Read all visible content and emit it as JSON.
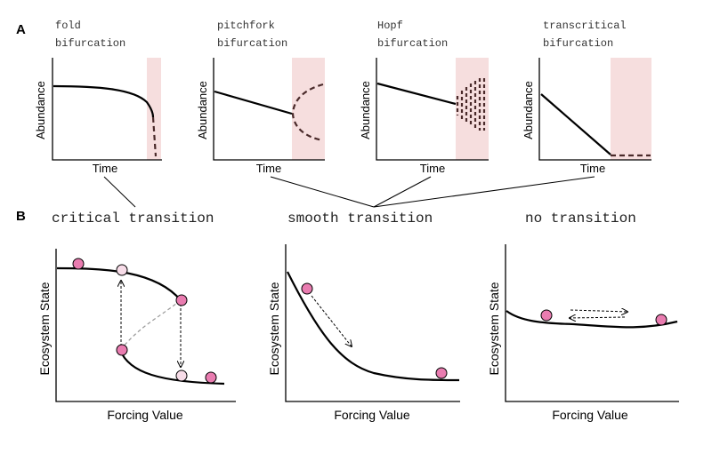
{
  "panel_a": {
    "letter": "A",
    "plots": [
      {
        "title_line1": "fold",
        "title_line2": "bifurcation",
        "xlabel": "Time",
        "ylabel": "Abundance"
      },
      {
        "title_line1": "pitchfork",
        "title_line2": "bifurcation",
        "xlabel": "Time",
        "ylabel": "Abundance"
      },
      {
        "title_line1": "Hopf",
        "title_line2": "bifurcation",
        "xlabel": "Time",
        "ylabel": "Abundance"
      },
      {
        "title_line1": "transcritical",
        "title_line2": "bifurcation",
        "xlabel": "Time",
        "ylabel": "Abundance"
      }
    ]
  },
  "panel_b": {
    "letter": "B",
    "plots": [
      {
        "title": "critical transition",
        "xlabel": "Forcing Value",
        "ylabel": "Ecosystem State"
      },
      {
        "title": "smooth transition",
        "xlabel": "Forcing Value",
        "ylabel": "Ecosystem State"
      },
      {
        "title": "no transition",
        "xlabel": "Forcing Value",
        "ylabel": "Ecosystem State"
      }
    ]
  },
  "colors": {
    "shade": "#f6dede",
    "ball": "#e97cb0",
    "ball_light": "#f7dce8",
    "dash": "#4a2a2a"
  }
}
